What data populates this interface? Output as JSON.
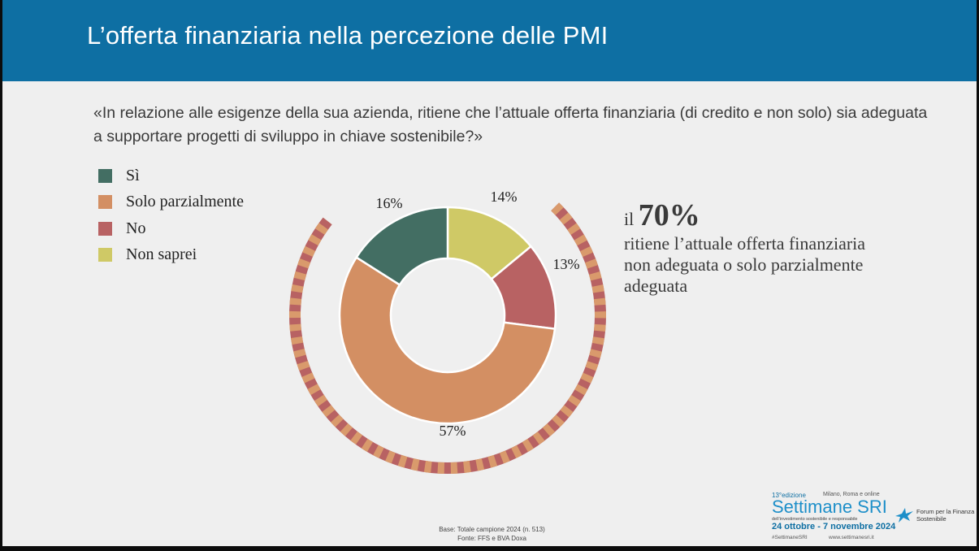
{
  "header": {
    "title": "L’offerta finanziaria nella percezione delle PMI"
  },
  "question": "«In relazione alle esigenze della sua azienda, ritiene che l’attuale offerta finanziaria (di credito e non solo) sia adeguata a supportare progetti di sviluppo in chiave sostenibile?»",
  "chart_data": {
    "type": "pie",
    "donut": true,
    "categories": [
      "Sì",
      "Solo parzialmente",
      "No",
      "Non saprei"
    ],
    "values": [
      16,
      57,
      13,
      14
    ],
    "labels": [
      "16%",
      "57%",
      "13%",
      "14%"
    ],
    "colors": [
      "#436e63",
      "#d38f63",
      "#b86263",
      "#cfc966"
    ],
    "legend": "top-left",
    "highlight": {
      "segments": [
        "Solo parzialmente",
        "No"
      ],
      "stripe_colors": [
        "#b86263",
        "#d99a6c"
      ]
    }
  },
  "callout": {
    "prefix": "il",
    "percent": "70%",
    "text": "ritiene l’attuale offerta finanziaria non adeguata o solo parzialmente adeguata"
  },
  "source": {
    "base": "Base: Totale campione 2024 (n. 513)",
    "fonte": "Fonte: FFS e BVA Doxa"
  },
  "brand": {
    "edition": "13°edizione",
    "location": "Milano, Roma e online",
    "name": "Settimane SRI",
    "tagline": "dell’investimento sostenibile e responsabile",
    "dates": "24 ottobre - 7 novembre 2024",
    "hashtag": "#SettimaneSRI",
    "website": "www.settimanesri.it",
    "forum": "Forum per la Finanza Sostenibile"
  }
}
